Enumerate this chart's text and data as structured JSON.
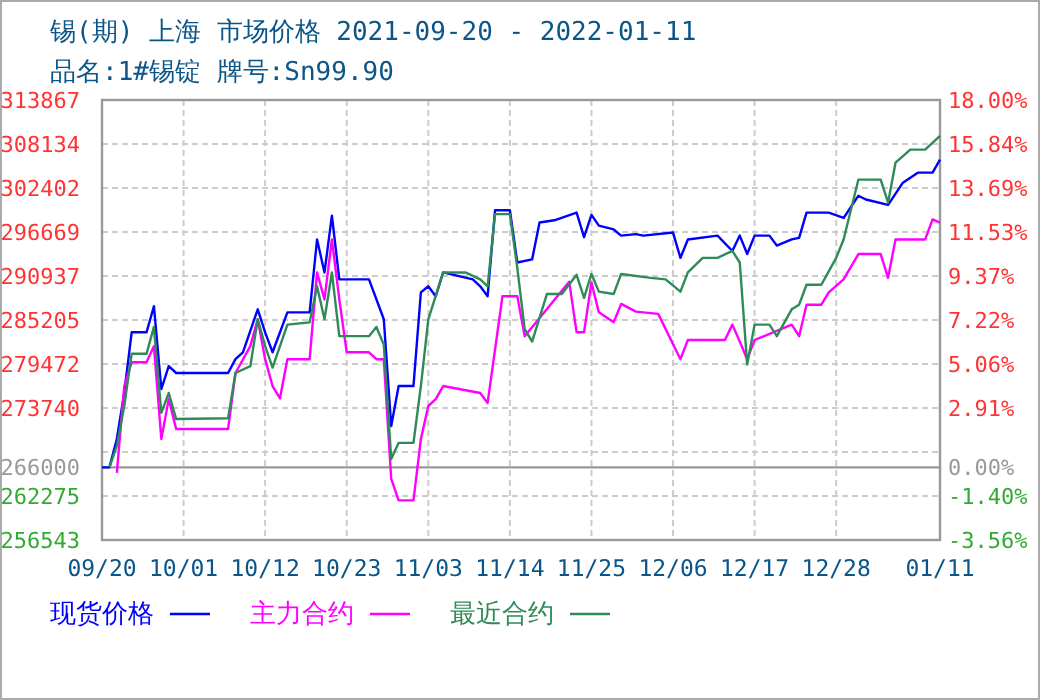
{
  "chart_data": {
    "type": "line",
    "title": "锡(期) 上海 市场价格 2021-09-20 - 2022-01-11",
    "subtitle": "品名:1#锡锭 牌号:Sn99.90",
    "xlim": [
      "2021-09-20",
      "2022-01-11"
    ],
    "xticks": [
      {
        "value": "2021-09-20",
        "label": "09/20"
      },
      {
        "value": "2021-10-01",
        "label": "10/01"
      },
      {
        "value": "2021-10-12",
        "label": "10/12"
      },
      {
        "value": "2021-10-23",
        "label": "10/23"
      },
      {
        "value": "2021-11-03",
        "label": "11/03"
      },
      {
        "value": "2021-11-14",
        "label": "11/14"
      },
      {
        "value": "2021-11-25",
        "label": "11/25"
      },
      {
        "value": "2021-12-06",
        "label": "12/06"
      },
      {
        "value": "2021-12-17",
        "label": "12/17"
      },
      {
        "value": "2021-12-28",
        "label": "12/28"
      },
      {
        "value": "2022-01-11",
        "label": "01/11"
      }
    ],
    "ylim": [
      256543,
      313867
    ],
    "yticks": [
      256543,
      262275,
      {
        "value": 268008,
        "label": null
      },
      273740,
      279472,
      285205,
      290937,
      296669,
      302402,
      308134,
      313867
    ],
    "y2lim": [
      -3.56,
      18.0
    ],
    "y2ticks": [
      {
        "value": -3.56,
        "label": "-3.56%"
      },
      {
        "value": -1.4,
        "label": "-1.40%"
      },
      {
        "value": 0,
        "label": "0.00%"
      },
      {
        "value": 0.75,
        "label": null
      },
      {
        "value": 2.91,
        "label": "2.91%"
      },
      {
        "value": 5.06,
        "label": "5.06%"
      },
      {
        "value": 7.22,
        "label": "7.22%"
      },
      {
        "value": 9.37,
        "label": "9.37%"
      },
      {
        "value": 11.53,
        "label": "11.53%"
      },
      {
        "value": 13.69,
        "label": "13.69%"
      },
      {
        "value": 15.84,
        "label": "15.84%"
      },
      {
        "value": 18.0,
        "label": "18.00%"
      }
    ],
    "ref_lines": [
      {
        "axis": "y",
        "value": 266000,
        "label": "266000",
        "color": "#999999"
      }
    ],
    "grid": true,
    "legend": "bottom",
    "line_style": "solid",
    "marker": "none",
    "series": [
      {
        "name": "现货价格",
        "color": "#0000ff",
        "x": [
          "2021-09-20",
          "2021-09-21",
          "2021-09-22",
          "2021-09-23",
          "2021-09-24",
          "2021-09-26",
          "2021-09-27",
          "2021-09-28",
          "2021-09-29",
          "2021-09-30",
          "2021-10-07",
          "2021-10-08",
          "2021-10-09",
          "2021-10-11",
          "2021-10-12",
          "2021-10-13",
          "2021-10-15",
          "2021-10-18",
          "2021-10-19",
          "2021-10-20",
          "2021-10-21",
          "2021-10-22",
          "2021-10-26",
          "2021-10-28",
          "2021-10-29",
          "2021-10-30",
          "2021-11-01",
          "2021-11-02",
          "2021-11-03",
          "2021-11-04",
          "2021-11-05",
          "2021-11-09",
          "2021-11-10",
          "2021-11-11",
          "2021-11-12",
          "2021-11-14",
          "2021-11-15",
          "2021-11-17",
          "2021-11-18",
          "2021-11-20",
          "2021-11-23",
          "2021-11-24",
          "2021-11-25",
          "2021-11-26",
          "2021-11-28",
          "2021-11-29",
          "2021-12-01",
          "2021-12-02",
          "2021-12-06",
          "2021-12-07",
          "2021-12-08",
          "2021-12-12",
          "2021-12-14",
          "2021-12-15",
          "2021-12-16",
          "2021-12-17",
          "2021-12-19",
          "2021-12-20",
          "2021-12-22",
          "2021-12-23",
          "2021-12-24",
          "2021-12-27",
          "2021-12-29",
          "2021-12-31",
          "2022-01-01",
          "2022-01-04",
          "2022-01-06",
          "2022-01-08",
          "2022-01-10",
          "2022-01-11"
        ],
        "values": [
          266000,
          266000,
          269700,
          275700,
          283600,
          283600,
          287000,
          276200,
          279200,
          278300,
          278300,
          280100,
          281000,
          286600,
          283600,
          281000,
          286200,
          286200,
          295700,
          291400,
          298800,
          290500,
          290500,
          285300,
          271400,
          276600,
          276600,
          288800,
          289600,
          288300,
          291400,
          290500,
          289600,
          288300,
          299500,
          299500,
          292700,
          293100,
          297900,
          298200,
          299200,
          296000,
          298900,
          297500,
          297000,
          296200,
          296400,
          296200,
          296600,
          293300,
          295700,
          296200,
          294200,
          296200,
          293800,
          296200,
          296200,
          294900,
          295700,
          295900,
          299200,
          299200,
          298500,
          301400,
          300900,
          300200,
          303100,
          304400,
          304400,
          306100
        ]
      },
      {
        "name": "主力合约",
        "color": "#ff00ff",
        "x": [
          "2021-09-22",
          "2021-09-23",
          "2021-09-24",
          "2021-09-26",
          "2021-09-27",
          "2021-09-28",
          "2021-09-29",
          "2021-09-30",
          "2021-10-07",
          "2021-10-08",
          "2021-10-10",
          "2021-10-11",
          "2021-10-12",
          "2021-10-13",
          "2021-10-14",
          "2021-10-15",
          "2021-10-18",
          "2021-10-19",
          "2021-10-20",
          "2021-10-21",
          "2021-10-22",
          "2021-10-23",
          "2021-10-26",
          "2021-10-27",
          "2021-10-28",
          "2021-10-29",
          "2021-10-30",
          "2021-11-01",
          "2021-11-02",
          "2021-11-03",
          "2021-11-04",
          "2021-11-05",
          "2021-11-10",
          "2021-11-11",
          "2021-11-13",
          "2021-11-15",
          "2021-11-16",
          "2021-11-22",
          "2021-11-23",
          "2021-11-24",
          "2021-11-25",
          "2021-11-26",
          "2021-11-28",
          "2021-11-29",
          "2021-12-01",
          "2021-12-04",
          "2021-12-07",
          "2021-12-08",
          "2021-12-13",
          "2021-12-14",
          "2021-12-15",
          "2021-12-16",
          "2021-12-17",
          "2021-12-22",
          "2021-12-23",
          "2021-12-24",
          "2021-12-26",
          "2021-12-27",
          "2021-12-29",
          "2021-12-31",
          "2022-01-03",
          "2022-01-04",
          "2022-01-05",
          "2022-01-09",
          "2022-01-10",
          "2022-01-11"
        ],
        "values": [
          265300,
          276600,
          279700,
          279700,
          281800,
          269700,
          274900,
          271000,
          271000,
          278300,
          281800,
          285300,
          280100,
          276600,
          275000,
          280100,
          280100,
          291400,
          287900,
          295700,
          287900,
          281000,
          281000,
          280100,
          280100,
          264500,
          261700,
          261700,
          269700,
          274000,
          274900,
          276600,
          275700,
          274400,
          288300,
          288300,
          283100,
          290200,
          283600,
          283600,
          290100,
          286200,
          284900,
          287300,
          286300,
          286000,
          280100,
          282600,
          282600,
          284600,
          282400,
          280100,
          282600,
          284600,
          283100,
          287200,
          287200,
          288800,
          290500,
          293800,
          293800,
          290700,
          295700,
          295700,
          298300,
          297900
        ]
      },
      {
        "name": "最近合约",
        "color": "#2e8b57",
        "x": [
          "2021-09-21",
          "2021-09-22",
          "2021-09-23",
          "2021-09-24",
          "2021-09-26",
          "2021-09-27",
          "2021-09-28",
          "2021-09-29",
          "2021-09-30",
          "2021-10-07",
          "2021-10-08",
          "2021-10-10",
          "2021-10-11",
          "2021-10-12",
          "2021-10-13",
          "2021-10-15",
          "2021-10-18",
          "2021-10-19",
          "2021-10-20",
          "2021-10-21",
          "2021-10-22",
          "2021-10-26",
          "2021-10-27",
          "2021-10-28",
          "2021-10-29",
          "2021-10-30",
          "2021-11-01",
          "2021-11-02",
          "2021-11-03",
          "2021-11-05",
          "2021-11-08",
          "2021-11-10",
          "2021-11-11",
          "2021-11-12",
          "2021-11-14",
          "2021-11-15",
          "2021-11-16",
          "2021-11-17",
          "2021-11-19",
          "2021-11-21",
          "2021-11-23",
          "2021-11-24",
          "2021-11-25",
          "2021-11-26",
          "2021-11-28",
          "2021-11-29",
          "2021-12-03",
          "2021-12-05",
          "2021-12-07",
          "2021-12-08",
          "2021-12-10",
          "2021-12-12",
          "2021-12-14",
          "2021-12-15",
          "2021-12-16",
          "2021-12-17",
          "2021-12-19",
          "2021-12-20",
          "2021-12-22",
          "2021-12-23",
          "2021-12-24",
          "2021-12-26",
          "2021-12-28",
          "2021-12-29",
          "2021-12-31",
          "2022-01-03",
          "2022-01-04",
          "2022-01-05",
          "2022-01-07",
          "2022-01-09",
          "2022-01-11"
        ],
        "values": [
          266000,
          268800,
          274000,
          280800,
          280800,
          284300,
          273100,
          275700,
          272300,
          272400,
          278300,
          279200,
          285300,
          281800,
          279000,
          284600,
          284900,
          289600,
          285300,
          291400,
          283100,
          283100,
          284300,
          282000,
          267100,
          269200,
          269200,
          276600,
          285300,
          291400,
          291400,
          290500,
          289600,
          299000,
          299000,
          292000,
          284000,
          282400,
          288600,
          288600,
          291100,
          288100,
          291200,
          288900,
          288600,
          291200,
          290700,
          290500,
          288900,
          291400,
          293300,
          293300,
          294200,
          292700,
          279400,
          284600,
          284600,
          283100,
          286600,
          287200,
          289800,
          289800,
          293300,
          295700,
          303500,
          303500,
          300500,
          305700,
          307400,
          307400,
          309200
        ]
      }
    ]
  }
}
